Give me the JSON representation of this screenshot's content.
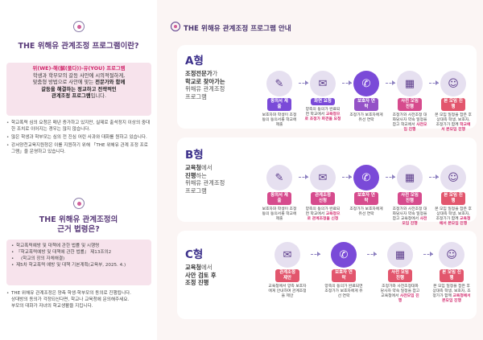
{
  "left": {
    "section1": {
      "title": "THE 위해유 관계조정 프로그램이란?",
      "intro_red": "위(WE)-해(解(풀다))-유(YOU) 프로그램",
      "intro_l1": "학생과 학부모의 갈등 사안에 시의적절하게,",
      "intro_l2": "맞춤형 방법으로 사안에 맞는",
      "intro_bold1": "전문가와 함께",
      "intro_bold2": "갈등을 해결하는 정교하고 전략적인",
      "intro_bold3": "관계조정 프로그램",
      "intro_end": "입니다.",
      "bullets": [
        "학교폭력 심의 요청은 매년 증가하고 있지만, 실제로 출석정지 이상의 중대한 조치로 이어지는 경우는 많지 않습니다.",
        "많은 학생과 학부모는 심의 전 진심 어린 사과와 대화를 원하고 있습니다.",
        "강서양천교육지원청은 이를 지원하기 위해 「THE 위해유 관계 조정 프로그램」을 운영하고 있습니다."
      ]
    },
    "section2": {
      "title_l1": "THE 위해유 관계조정의",
      "title_l2": "근거 법령은?",
      "laws": [
        "학교폭력예방 및 대책에 관한 법률 및 시행령",
        "『학교폭력예방 및 대책에 관한 법률』 제13조의2",
        "(학교의 장의 자체해결)",
        "제5차 학교폭력 예방 및 대책 기본계획(교육부, 2025. 4.)"
      ],
      "footer_bullet": "THE 위해유 관계조정은 양측 학생·학부모의 동의로 진행됩니다.",
      "footer_l2": "상대방의 동의가 걱정되신다면, 학교나 교육청에 문의해주세요.",
      "footer_l3": "부모의 대화가 자녀의 학교생활을 지킵니다."
    }
  },
  "guide": {
    "title": "THE 위해유 관계조정 프로그램 안내",
    "types": [
      {
        "letter": "A형",
        "desc_l1_em": "조정전문가",
        "desc_l1": "가",
        "desc_l2_em": "학교로 찾아가는",
        "desc_l3": "위해유 관계조정",
        "desc_l4": "프로그램",
        "steps": [
          {
            "label": "동의서 제출",
            "text": "보호자와 학생이 조정동의 동의서를 학교에 제출",
            "hl": ""
          },
          {
            "label": "화면 요청",
            "text": "양측의 동의가 완료되면 학교에서",
            "hl": "교육청으로 조정가 파견을 요청"
          },
          {
            "label": "보호자 연락",
            "text": "조정가가 보호자에게 유선 연락",
            "hl": ""
          },
          {
            "label": "사전 모임 진행",
            "text": "조정가와 사전조정 대화당사자 약속 일정을 잡고 학교에서",
            "hl": "사전모임 진행"
          },
          {
            "label": "본 모임 진행",
            "text": "본 모임 일정을 잡은 후 상대측 학생, 보호자, 조정가가 함께",
            "hl": "학교에서 본모임 진행"
          }
        ]
      },
      {
        "letter": "B형",
        "desc_l1_em": "교육청",
        "desc_l1": "에서",
        "desc_l2_em": "진행",
        "desc_l2": "하는",
        "desc_l3": "위해유 관계조정",
        "desc_l4": "프로그램",
        "steps": [
          {
            "label": "동의서 제출",
            "text": "보호자와 학생이 조정동의 동의서를 학교에 제출",
            "hl": ""
          },
          {
            "label": "관계조정 신청",
            "text": "양측의 동의가 완료되면 학교에서",
            "hl": "교육청으로 관계조정을 신청"
          },
          {
            "label": "보호자 연락",
            "text": "조정가가 보호자에게 유선 연락",
            "hl": ""
          },
          {
            "label": "사전 모임 진행",
            "text": "조정가와 사전조정 대화당사자 약속 일정을 잡고 교육청에서",
            "hl": "사전모임 진행"
          },
          {
            "label": "본 모임 진행",
            "text": "본 모임 일정을 잡은 후 상대측 학생, 보호자, 조정가가 함께",
            "hl": "교육청에서 본모임 진행"
          }
        ]
      },
      {
        "letter": "C형",
        "desc_l1_em": "교육청",
        "desc_l1": "에서",
        "desc_l2_em": "사안 검토 후",
        "desc_l3_em": "조정 진행",
        "steps": [
          {
            "label": "관계조정 제안",
            "text": "교육청에서 양측 보호자에게 안내하며 관계조정을 제안",
            "hl": ""
          },
          {
            "label": "보호자 연락",
            "text": "양측의 동의가 완료되면 조정가가 보호자에게 유선 연락",
            "hl": ""
          },
          {
            "label": "사전 모임 진행",
            "text": "조정가와 사전조정대화당사자 약속 일정을 잡고 교육청에서",
            "hl": "사전모임 진행"
          },
          {
            "label": "본 모임 진행",
            "text": "본 모임 일정을 잡은 후 상대측 학생, 보호자, 조정가가 함께",
            "hl": "교육청에서 본모임 진행"
          }
        ]
      }
    ]
  }
}
